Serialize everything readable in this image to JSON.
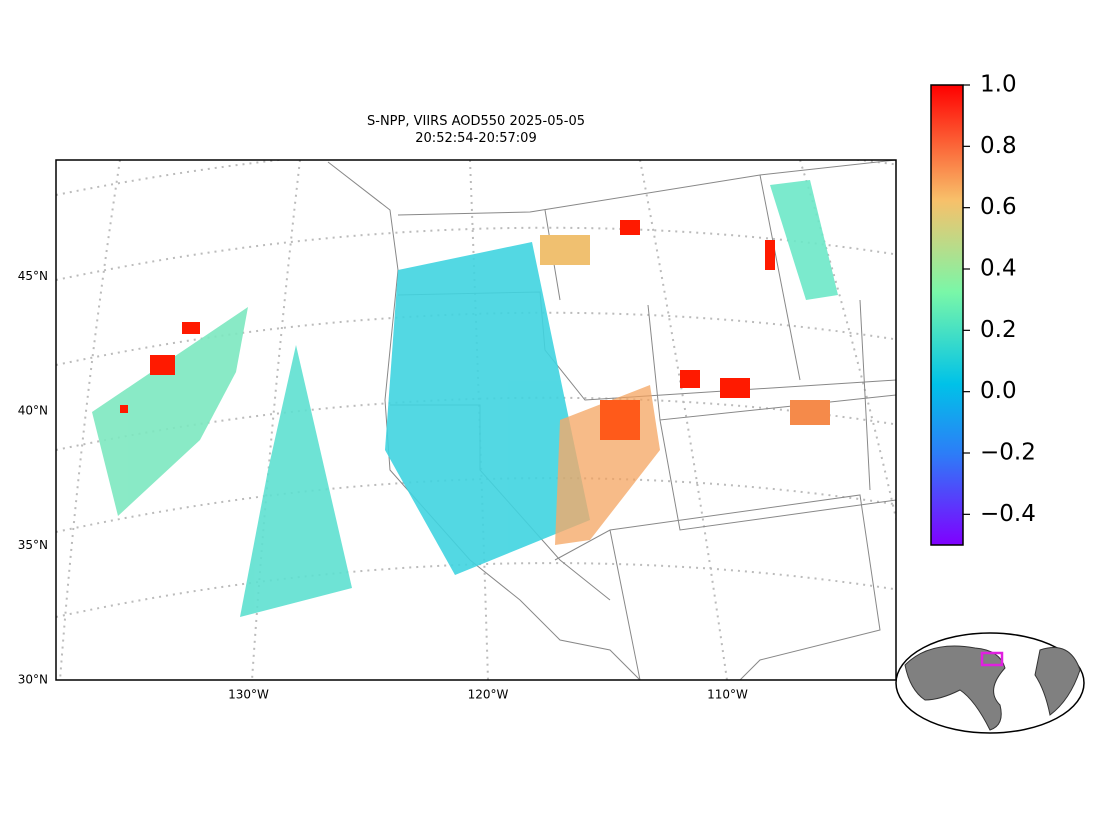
{
  "title": [
    "S-NPP, VIIRS AOD550 2025-05-05",
    "20:52:54-20:57:09"
  ],
  "map": {
    "lat_ticks": [
      {
        "value": 45,
        "label": "45°N"
      },
      {
        "value": 40,
        "label": "40°N"
      },
      {
        "value": 35,
        "label": "35°N"
      },
      {
        "value": 30,
        "label": "30°N"
      }
    ],
    "lon_ticks": [
      {
        "value": -130,
        "label": "130°W"
      },
      {
        "value": -120,
        "label": "120°W"
      },
      {
        "value": -110,
        "label": "110°W"
      }
    ]
  },
  "colorbar": {
    "range": [
      -0.5,
      1.0
    ],
    "ticks": [
      {
        "value": 1.0,
        "label": "1.0"
      },
      0.8,
      0.6,
      0.4,
      0.2,
      {
        "value": 0.0,
        "label": "0.0"
      },
      {
        "value": -0.2,
        "label": "−0.2"
      },
      {
        "value": -0.4,
        "label": "−0.4"
      }
    ]
  }
}
